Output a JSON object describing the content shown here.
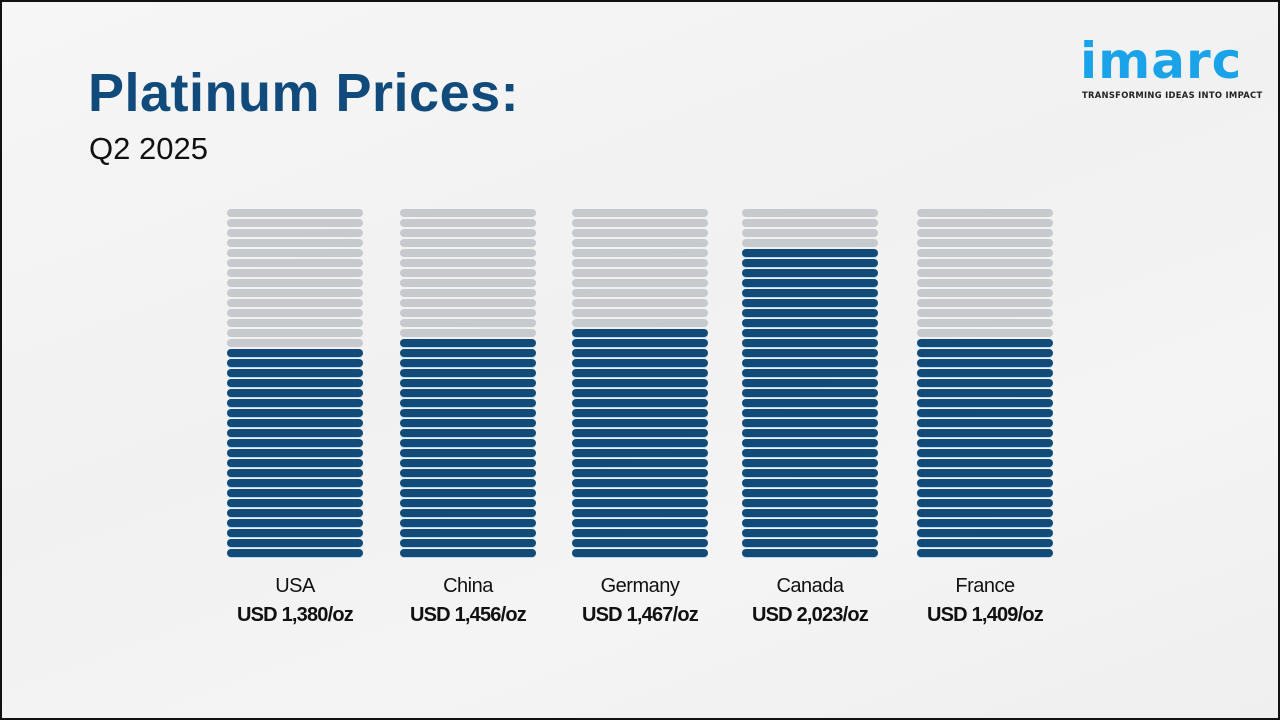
{
  "header": {
    "title": "Platinum Prices:",
    "subtitle": "Q2 2025"
  },
  "logo": {
    "wordmark": "imarc",
    "tagline": "TRANSFORMING IDEAS INTO IMPACT",
    "color": "#1aa3e8"
  },
  "colors": {
    "filled": "#124a78",
    "empty": "#c6cacf",
    "title": "#114b7c"
  },
  "chart_data": {
    "type": "bar",
    "title": "Platinum Prices: Q2 2025",
    "xlabel": "",
    "ylabel": "",
    "unit": "USD/oz",
    "categories": [
      "USA",
      "China",
      "Germany",
      "Canada",
      "France"
    ],
    "values": [
      1380,
      1456,
      1467,
      2023,
      1409
    ],
    "value_labels": [
      "USD 1,380/oz",
      "USD 1,456/oz",
      "USD 1,467/oz",
      "USD 2,023/oz",
      "USD 1,409/oz"
    ],
    "segments_total": 35,
    "segments_filled": [
      21,
      22,
      23,
      31,
      22
    ],
    "grid": false,
    "legend": "none"
  }
}
